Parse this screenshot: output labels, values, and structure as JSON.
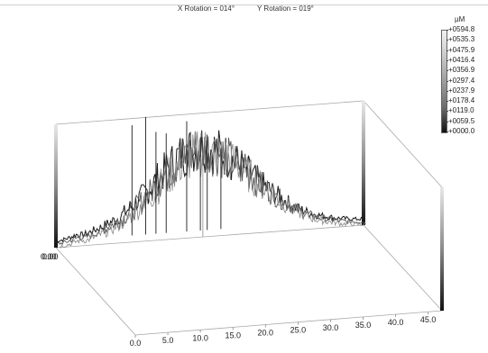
{
  "header": {
    "x_rotation": "X Rotation = 014°",
    "y_rotation": "Y Rotation = 019°"
  },
  "colorbar": {
    "unit": "µM",
    "ticks": [
      "+0594.8",
      "+0535.3",
      "+0475.9",
      "+0416.4",
      "+0356.9",
      "+0297.4",
      "+0237.9",
      "+0178.4",
      "+0119.0",
      "+0059.5",
      "+0000.0"
    ]
  },
  "chart_data": {
    "type": "surface-3d",
    "title": "",
    "z_unit": "µM",
    "x_axis": {
      "ticks": [
        "0.0",
        "5.0",
        "10.0",
        "15.0",
        "20.0",
        "25.0",
        "30.0",
        "35.0",
        "40.0",
        "45.0"
      ],
      "range": [
        0,
        45
      ]
    },
    "z_axis": {
      "range": [
        0,
        594.8
      ]
    },
    "corner_labels": [
      "0.00",
      "0.00"
    ],
    "profile": {
      "x": [
        0,
        1,
        2,
        3,
        4,
        5,
        6,
        7,
        8,
        9,
        10,
        11,
        12,
        13,
        14,
        15,
        16,
        17,
        18,
        19,
        20,
        21,
        22,
        23,
        24,
        25,
        26,
        27,
        28,
        29,
        30,
        31,
        32,
        33,
        34,
        35,
        36,
        37,
        38,
        39,
        40,
        41,
        42,
        43,
        44,
        45
      ],
      "z": [
        40,
        45,
        55,
        70,
        65,
        80,
        95,
        110,
        130,
        150,
        180,
        215,
        250,
        290,
        330,
        380,
        420,
        460,
        500,
        520,
        540,
        560,
        545,
        530,
        510,
        480,
        450,
        420,
        380,
        340,
        300,
        265,
        230,
        200,
        170,
        140,
        120,
        100,
        85,
        75,
        65,
        55,
        50,
        45,
        40,
        38
      ]
    },
    "spikes": [
      {
        "x": 11,
        "z": 560
      },
      {
        "x": 13,
        "z": 594.8
      },
      {
        "x": 14.5,
        "z": 520
      },
      {
        "x": 16,
        "z": 510
      },
      {
        "x": 19,
        "z": 560
      },
      {
        "x": 21,
        "z": 480
      },
      {
        "x": 22,
        "z": 490
      },
      {
        "x": 24,
        "z": 420
      }
    ]
  }
}
